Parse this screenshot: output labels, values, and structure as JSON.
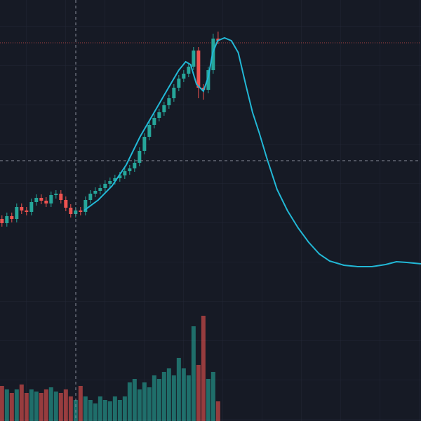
{
  "chart_data": {
    "type": "candlestick",
    "xlim": [
      -0.4,
      85.3
    ],
    "ylim": [
      0,
      600
    ],
    "up_color": "#26a69a",
    "down_color": "#ef5350",
    "line_color": "#22b8d6",
    "open": [
      288,
      282,
      292,
      288,
      305,
      300,
      298,
      312,
      318,
      314,
      310,
      322,
      324,
      315,
      304,
      295,
      300,
      298,
      315,
      324,
      328,
      332,
      338,
      342,
      346,
      350,
      356,
      360,
      368,
      385,
      405,
      422,
      432,
      440,
      450,
      460,
      475,
      488,
      495,
      505,
      528,
      475,
      472,
      500,
      545
    ],
    "high": [
      293,
      297,
      297,
      310,
      310,
      305,
      317,
      323,
      323,
      319,
      327,
      329,
      329,
      320,
      309,
      305,
      305,
      320,
      329,
      333,
      337,
      343,
      347,
      351,
      355,
      361,
      365,
      373,
      390,
      410,
      427,
      437,
      445,
      455,
      465,
      480,
      493,
      500,
      510,
      533,
      533,
      480,
      505,
      552,
      555
    ],
    "low": [
      277,
      277,
      283,
      283,
      295,
      293,
      293,
      307,
      309,
      305,
      305,
      317,
      310,
      299,
      290,
      290,
      293,
      293,
      310,
      319,
      323,
      327,
      333,
      337,
      341,
      345,
      351,
      355,
      363,
      380,
      400,
      417,
      427,
      435,
      445,
      455,
      470,
      483,
      490,
      500,
      460,
      458,
      467,
      495,
      537
    ],
    "close": [
      282,
      292,
      288,
      305,
      300,
      298,
      312,
      318,
      314,
      310,
      322,
      324,
      315,
      304,
      295,
      300,
      298,
      315,
      324,
      328,
      332,
      338,
      342,
      346,
      350,
      356,
      360,
      368,
      385,
      405,
      422,
      432,
      440,
      450,
      460,
      475,
      488,
      495,
      505,
      528,
      475,
      472,
      500,
      545,
      542
    ],
    "volume": [
      50,
      45,
      40,
      45,
      52,
      40,
      45,
      42,
      40,
      45,
      48,
      42,
      40,
      45,
      35,
      30,
      50,
      35,
      30,
      25,
      35,
      30,
      28,
      35,
      30,
      35,
      55,
      60,
      45,
      55,
      48,
      65,
      60,
      70,
      75,
      65,
      90,
      75,
      65,
      135,
      80,
      150,
      60,
      70,
      28
    ],
    "line": {
      "x": [
        16.7,
        19.6,
        22.4,
        25.3,
        28.1,
        31,
        33.9,
        36,
        37.4,
        38.4,
        39.6,
        41,
        42,
        42.9,
        43.9,
        45.3,
        46.7,
        48.1,
        49.6,
        51,
        52.4,
        53.9,
        56,
        58.1,
        60.3,
        62.4,
        64.6,
        66.7,
        69.6,
        72.4,
        75.3,
        78.1,
        80.3,
        82.4,
        85.3
      ],
      "values": [
        300,
        315,
        335,
        365,
        405,
        440,
        475,
        500,
        512,
        508,
        480,
        470,
        490,
        525,
        542,
        546,
        542,
        525,
        480,
        440,
        410,
        375,
        330,
        300,
        275,
        255,
        238,
        228,
        222,
        220,
        220,
        223,
        227,
        226,
        224
      ]
    }
  }
}
